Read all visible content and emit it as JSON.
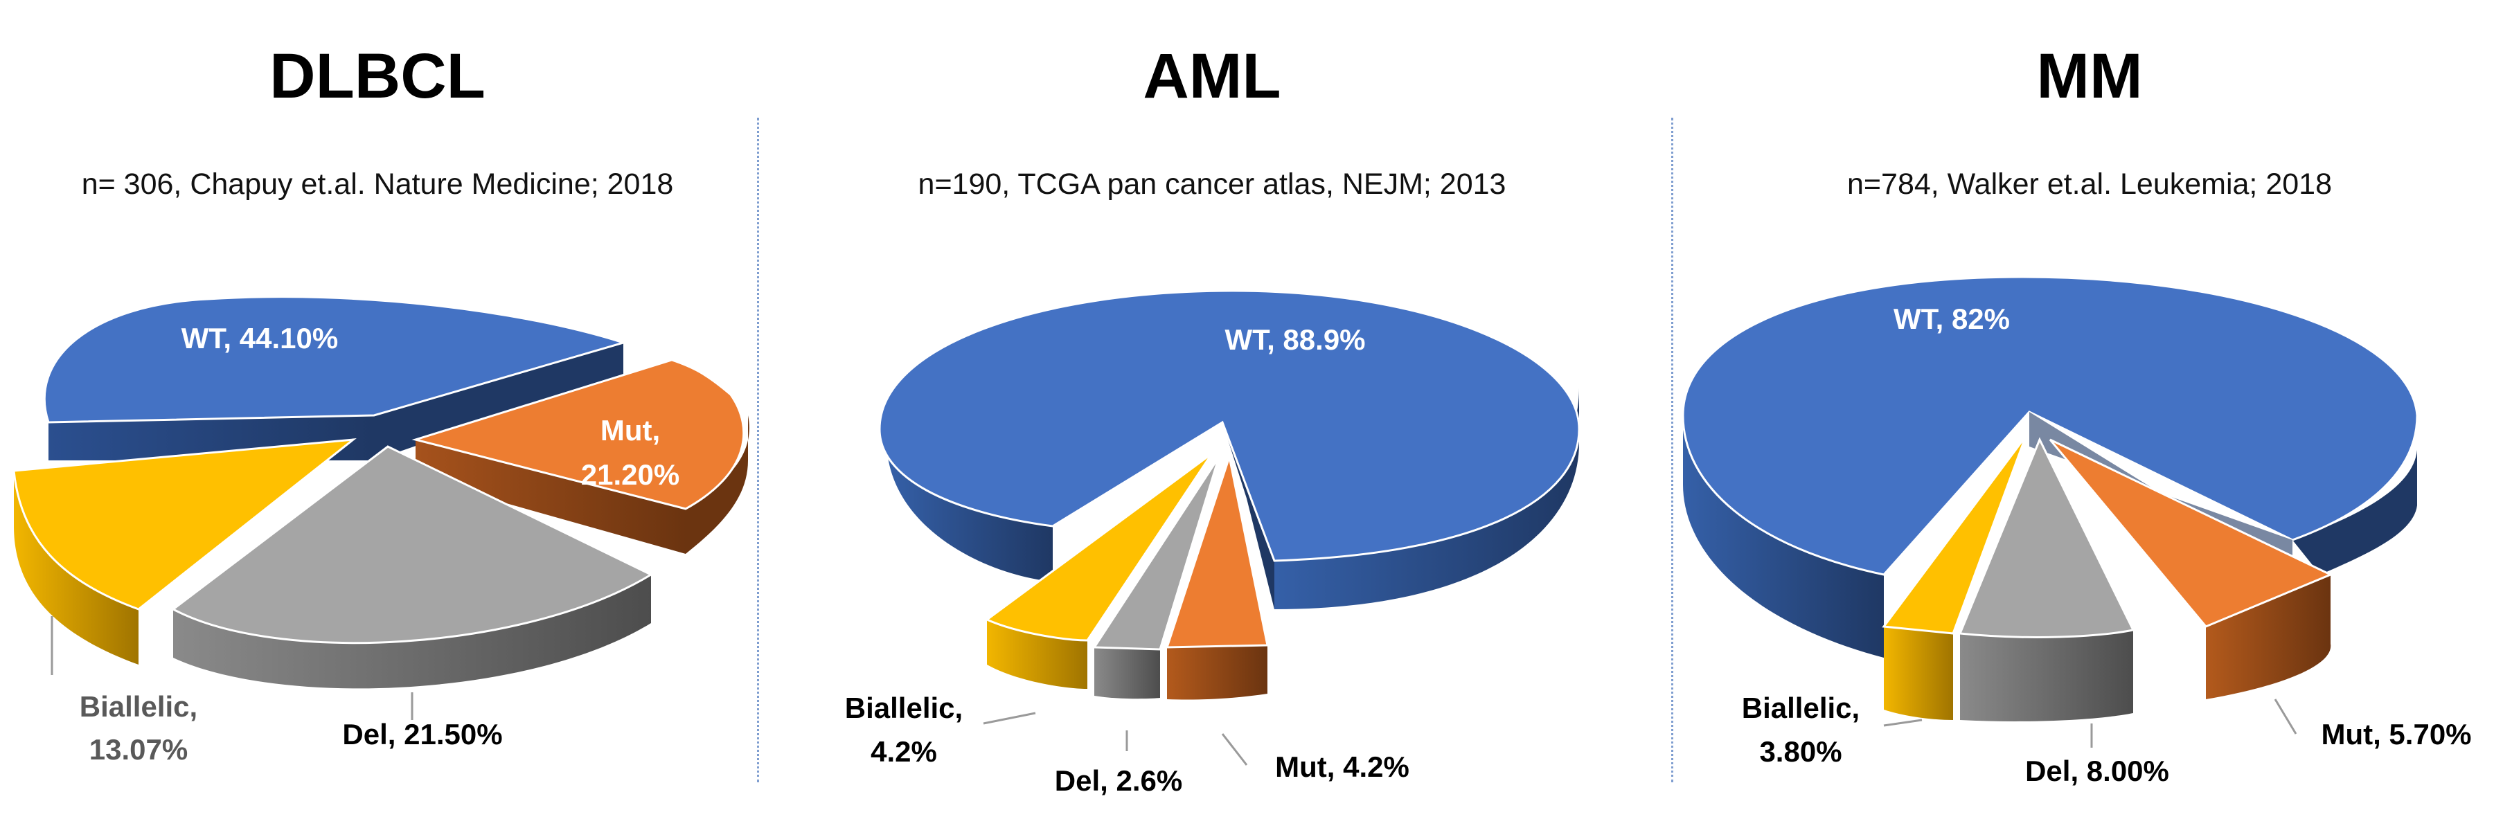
{
  "chart_data": [
    {
      "type": "pie",
      "title": "DLBCL",
      "source": "n= 306, Chapuy et.al. Nature Medicine; 2018",
      "slices": [
        {
          "name": "WT",
          "value": 44.1,
          "label": "WT, 44.10%",
          "color": "#4472c4"
        },
        {
          "name": "Mut",
          "value": 21.2,
          "label_line1": "Mut,",
          "label_line2": "21.20%",
          "color": "#ed7d31"
        },
        {
          "name": "Del",
          "value": 21.5,
          "label": "Del, 21.50%",
          "color": "#a5a5a5"
        },
        {
          "name": "Biallelic",
          "value": 13.07,
          "label_line1": "Biallelic,",
          "label_line2": "13.07%",
          "color": "#ffc000"
        }
      ]
    },
    {
      "type": "pie",
      "title": "AML",
      "source": "n=190, TCGA pan cancer atlas, NEJM; 2013",
      "slices": [
        {
          "name": "WT",
          "value": 88.9,
          "label": "WT, 88.9%",
          "color": "#4472c4"
        },
        {
          "name": "Mut",
          "value": 4.2,
          "label": "Mut, 4.2%",
          "color": "#ed7d31"
        },
        {
          "name": "Del",
          "value": 2.6,
          "label": "Del, 2.6%",
          "color": "#a5a5a5"
        },
        {
          "name": "Biallelic",
          "value": 4.2,
          "label_line1": "Biallelic,",
          "label_line2": "4.2%",
          "color": "#ffc000"
        }
      ]
    },
    {
      "type": "pie",
      "title": "MM",
      "source": "n=784, Walker et.al. Leukemia; 2018",
      "slices": [
        {
          "name": "WT",
          "value": 82,
          "label": "WT, 82%",
          "color": "#4472c4"
        },
        {
          "name": "Mut",
          "value": 5.7,
          "label": "Mut, 5.70%",
          "color": "#ed7d31"
        },
        {
          "name": "Del",
          "value": 8.0,
          "label": "Del, 8.00%",
          "color": "#a5a5a5"
        },
        {
          "name": "Biallelic",
          "value": 3.8,
          "label_line1": "Biallelic,",
          "label_line2": "3.80%",
          "color": "#ffc000"
        }
      ]
    }
  ]
}
